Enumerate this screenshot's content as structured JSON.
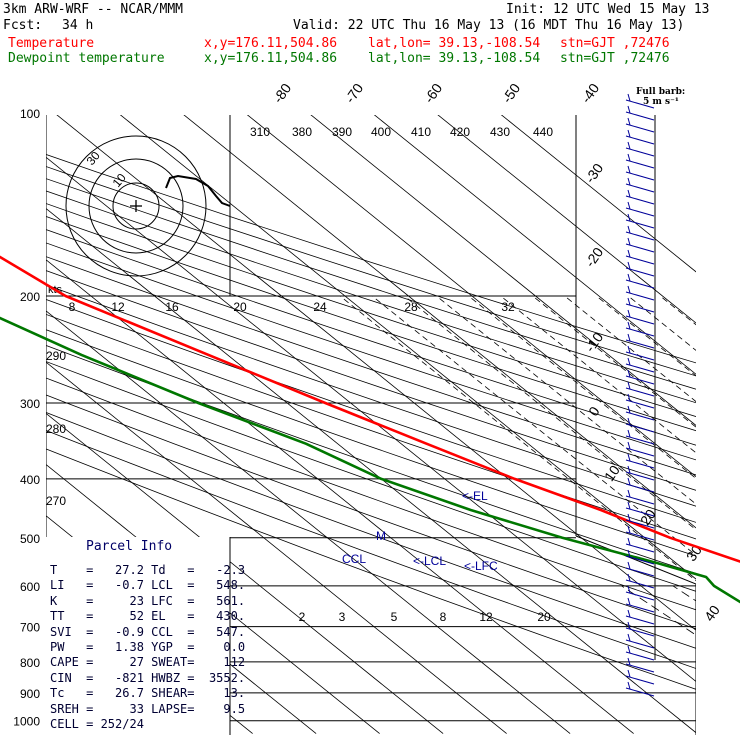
{
  "header": {
    "model": "3km ARW-WRF -- NCAR/MMM",
    "init": "Init: 12 UTC Wed 15 May 13",
    "fcst_label": "Fcst:",
    "fcst_value": "34 h",
    "valid": "Valid: 22 UTC Thu 16 May 13 (16 MDT Thu 16 May 13)",
    "temperature_label": "Temperature",
    "dewpoint_label": "Dewpoint temperature",
    "xy": "x,y=176.11,504.86",
    "latlon": "lat,lon= 39.13,-108.54",
    "stn": "stn=GJT ,72476"
  },
  "barb_legend": {
    "line1": "Full barb:",
    "line2": "5 m s⁻¹"
  },
  "colors": {
    "temperature": "#ff0000",
    "dewpoint": "#007700",
    "wind": "#000099",
    "grid": "#000000"
  },
  "parcel_info": {
    "title": "Parcel Info",
    "rows": [
      [
        "T",
        "27.2",
        "Td",
        "-2.3"
      ],
      [
        "LI",
        "-0.7",
        "LCL",
        "548."
      ],
      [
        "K",
        "23",
        "LFC",
        "561."
      ],
      [
        "TT",
        "52",
        "EL",
        "430."
      ],
      [
        "SVI",
        "-0.9",
        "CCL",
        "547."
      ],
      [
        "PW",
        "1.38",
        "YGP",
        "0.0"
      ],
      [
        "CAPE",
        "27",
        "SWEAT",
        "112"
      ],
      [
        "CIN",
        "-821",
        "HWBZ",
        "3552."
      ],
      [
        "Tc",
        "26.7",
        "SHEAR",
        "13."
      ],
      [
        "SREH",
        "33",
        "LAPSE",
        "9.5"
      ],
      [
        "CELL",
        "252/24",
        "",
        ""
      ]
    ]
  },
  "chart_data": {
    "type": "line",
    "title": "",
    "pressure_levels": [
      100,
      200,
      300,
      400,
      500,
      600,
      700,
      800,
      900,
      1000
    ],
    "isotherm_labels": [
      -80,
      -70,
      -60,
      -50,
      -40,
      -30,
      -20,
      -10,
      0,
      10,
      20,
      30,
      40
    ],
    "theta_e_labels": [
      310,
      380,
      390,
      400,
      410,
      420,
      430,
      440
    ],
    "mixing_ratio_labels": [
      2,
      3,
      5,
      8,
      12,
      20
    ],
    "theta_labels": [
      290,
      280,
      270
    ],
    "hodograph": {
      "unit": "kts",
      "speed_labels": [
        8,
        12,
        16,
        20,
        24,
        28,
        32
      ],
      "ring_labels": [
        30,
        10
      ]
    },
    "level_markers": [
      "EL",
      "LCL",
      "LFC",
      "CCL",
      "M"
    ],
    "series": [
      {
        "name": "Temperature",
        "points": [
          [
            100,
            -56
          ],
          [
            120,
            -57
          ],
          [
            150,
            -58
          ],
          [
            170,
            -57
          ],
          [
            200,
            -54
          ],
          [
            250,
            -43
          ],
          [
            300,
            -34
          ],
          [
            350,
            -26
          ],
          [
            400,
            -19
          ],
          [
            450,
            -11.5
          ],
          [
            500,
            -6
          ],
          [
            550,
            0.8
          ],
          [
            600,
            6.5
          ],
          [
            650,
            11.5
          ],
          [
            700,
            15.5
          ],
          [
            750,
            19.5
          ],
          [
            800,
            23
          ],
          [
            840,
            27.2
          ]
        ]
      },
      {
        "name": "Dewpoint temperature",
        "points": [
          [
            100,
            -70
          ],
          [
            130,
            -71
          ],
          [
            150,
            -74
          ],
          [
            170,
            -75
          ],
          [
            200,
            -72
          ],
          [
            250,
            -63
          ],
          [
            300,
            -54
          ],
          [
            350,
            -45
          ],
          [
            400,
            -40
          ],
          [
            450,
            -32
          ],
          [
            500,
            -23
          ],
          [
            550,
            -13
          ],
          [
            580,
            -8
          ],
          [
            600,
            -8.5
          ],
          [
            700,
            -6
          ],
          [
            800,
            -3
          ],
          [
            840,
            -2.3
          ]
        ]
      }
    ]
  }
}
